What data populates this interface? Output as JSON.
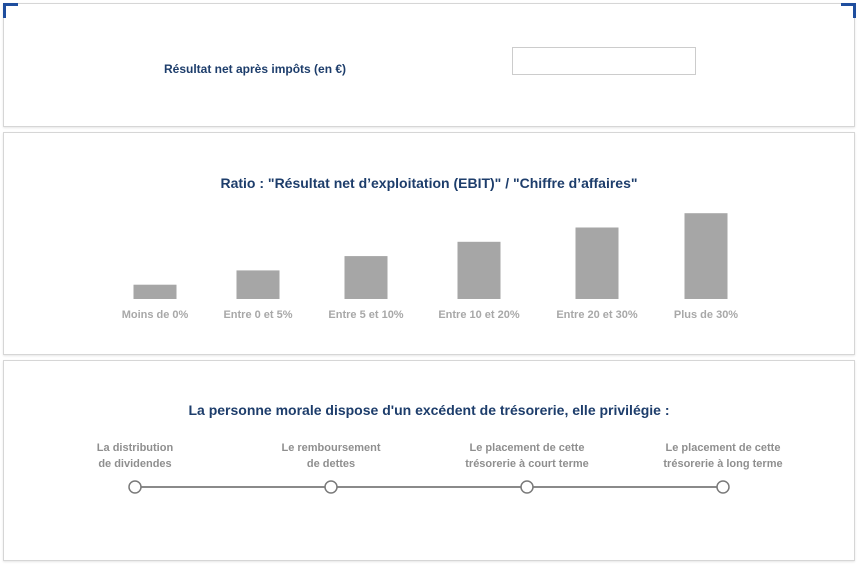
{
  "result": {
    "label": "Résultat net après impôts (en €)",
    "value": "",
    "placeholder": ""
  },
  "ratio": {
    "title": "Ratio : \"Résultat net d’exploitation (EBIT)\" / \"Chiffre d’affaires\""
  },
  "chart_data": {
    "type": "bar",
    "categories": [
      "Moins de 0%",
      "Entre 0 et 5%",
      "Entre 5 et 10%",
      "Entre 10 et 20%",
      "Entre 20 et 30%",
      "Plus de 30%"
    ],
    "values": [
      1,
      2,
      3,
      4,
      5,
      6
    ],
    "title": "Ratio : \"Résultat net d’exploitation (EBIT)\" / \"Chiffre d’affaires\"",
    "xlabel": "",
    "ylabel": "",
    "ylim": [
      0,
      6
    ],
    "grid": false
  },
  "treasury": {
    "title": "La personne morale dispose d'un excédent de trésorerie, elle privilégie :",
    "options": [
      {
        "line1": "La distribution",
        "line2": "de dividendes"
      },
      {
        "line1": "Le remboursement",
        "line2": "de dettes"
      },
      {
        "line1": "Le placement de cette",
        "line2": "trésorerie à court terme"
      },
      {
        "line1": "Le placement de cette",
        "line2": "trésorerie à long terme"
      }
    ]
  },
  "colors": {
    "accent": "#1f4e9e",
    "title": "#1d3d6b",
    "bar": "#a6a6a6",
    "muted_label": "#a8a8a8"
  }
}
